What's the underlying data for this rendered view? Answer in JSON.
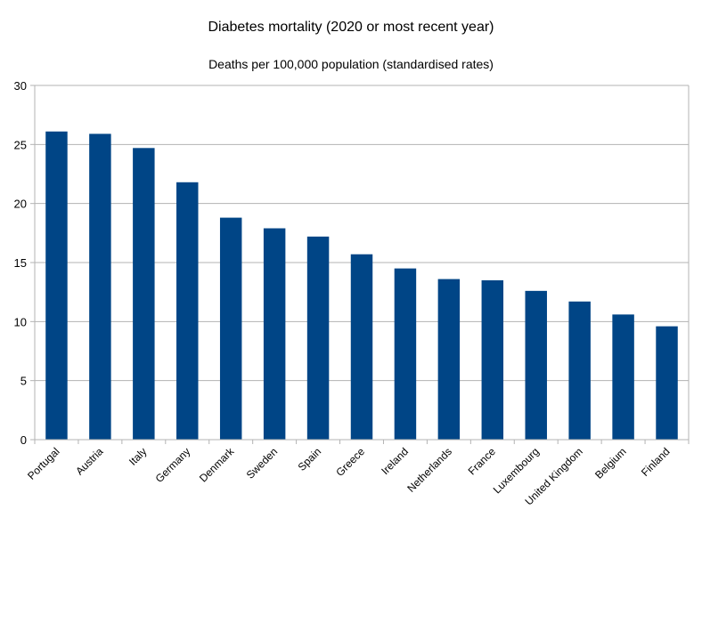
{
  "chart_data": {
    "type": "bar",
    "title": "Diabetes mortality (2020 or most recent year)",
    "subtitle": "Deaths per 100,000 population (standardised rates)",
    "xlabel": "",
    "ylabel": "",
    "categories": [
      "Portugal",
      "Austria",
      "Italy",
      "Germany",
      "Denmark",
      "Sweden",
      "Spain",
      "Greece",
      "Ireland",
      "Netherlands",
      "France",
      "Luxembourg",
      "United Kingdom",
      "Belgium",
      "Finland"
    ],
    "values": [
      26.1,
      25.9,
      24.7,
      21.8,
      18.8,
      17.9,
      17.2,
      15.7,
      14.5,
      13.6,
      13.5,
      12.6,
      11.7,
      10.6,
      9.6
    ],
    "ylim": [
      0,
      30
    ],
    "yticks": [
      0,
      5,
      10,
      15,
      20,
      25,
      30
    ],
    "grid": true,
    "legend": "none",
    "bar_color": "#004586",
    "grid_color": "#b3b3b3"
  }
}
